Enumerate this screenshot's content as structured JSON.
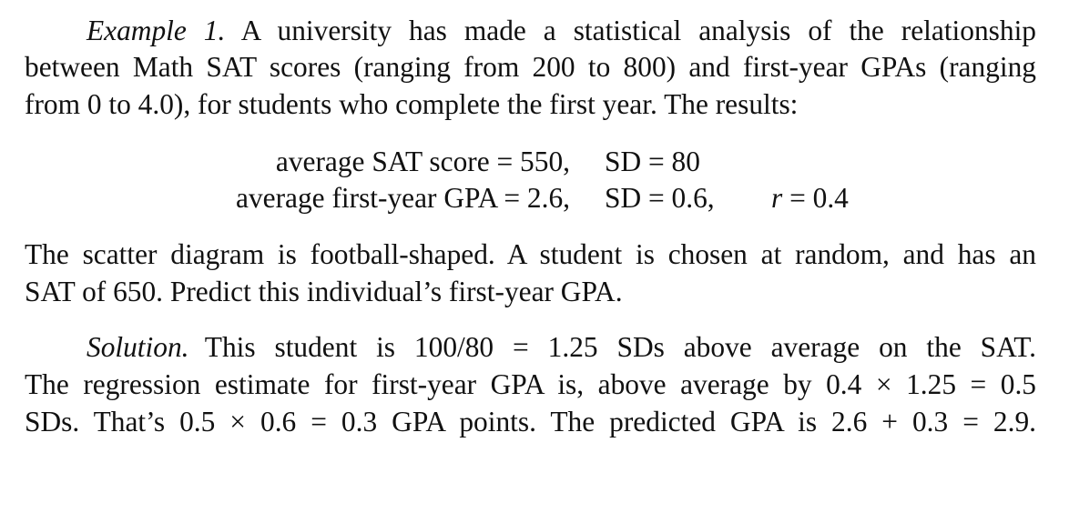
{
  "example": {
    "label": "Example 1.",
    "line1": "A university has made a statistical analysis of the relationship",
    "line2": "between Math SAT scores (ranging from 200 to 800) and first-year GPAs (ranging",
    "line3": "from 0 to 4.0), for students who complete the first year. The results:"
  },
  "equations": {
    "row1_left": "average SAT score = 550,",
    "row1_sd": "SD = 80",
    "row2_left": "average first-year GPA = 2.6,",
    "row2_sd": "SD = 0.6,",
    "row2_r_var": "r",
    "row2_r_val": " = 0.4"
  },
  "problem": {
    "line1": "The scatter diagram is football-shaped. A student is chosen at random, and has an",
    "line2": "SAT of 650. Predict this individual’s first-year GPA."
  },
  "solution": {
    "label": "Solution.",
    "line1": "This student is 100/80 = 1.25 SDs above average on the SAT.",
    "line2": "The regression estimate for first-year GPA is, above average by 0.4 × 1.25 = 0.5",
    "line3": "SDs. That’s 0.5 × 0.6 = 0.3 GPA points. The predicted GPA is 2.6 + 0.3 = 2.9."
  }
}
